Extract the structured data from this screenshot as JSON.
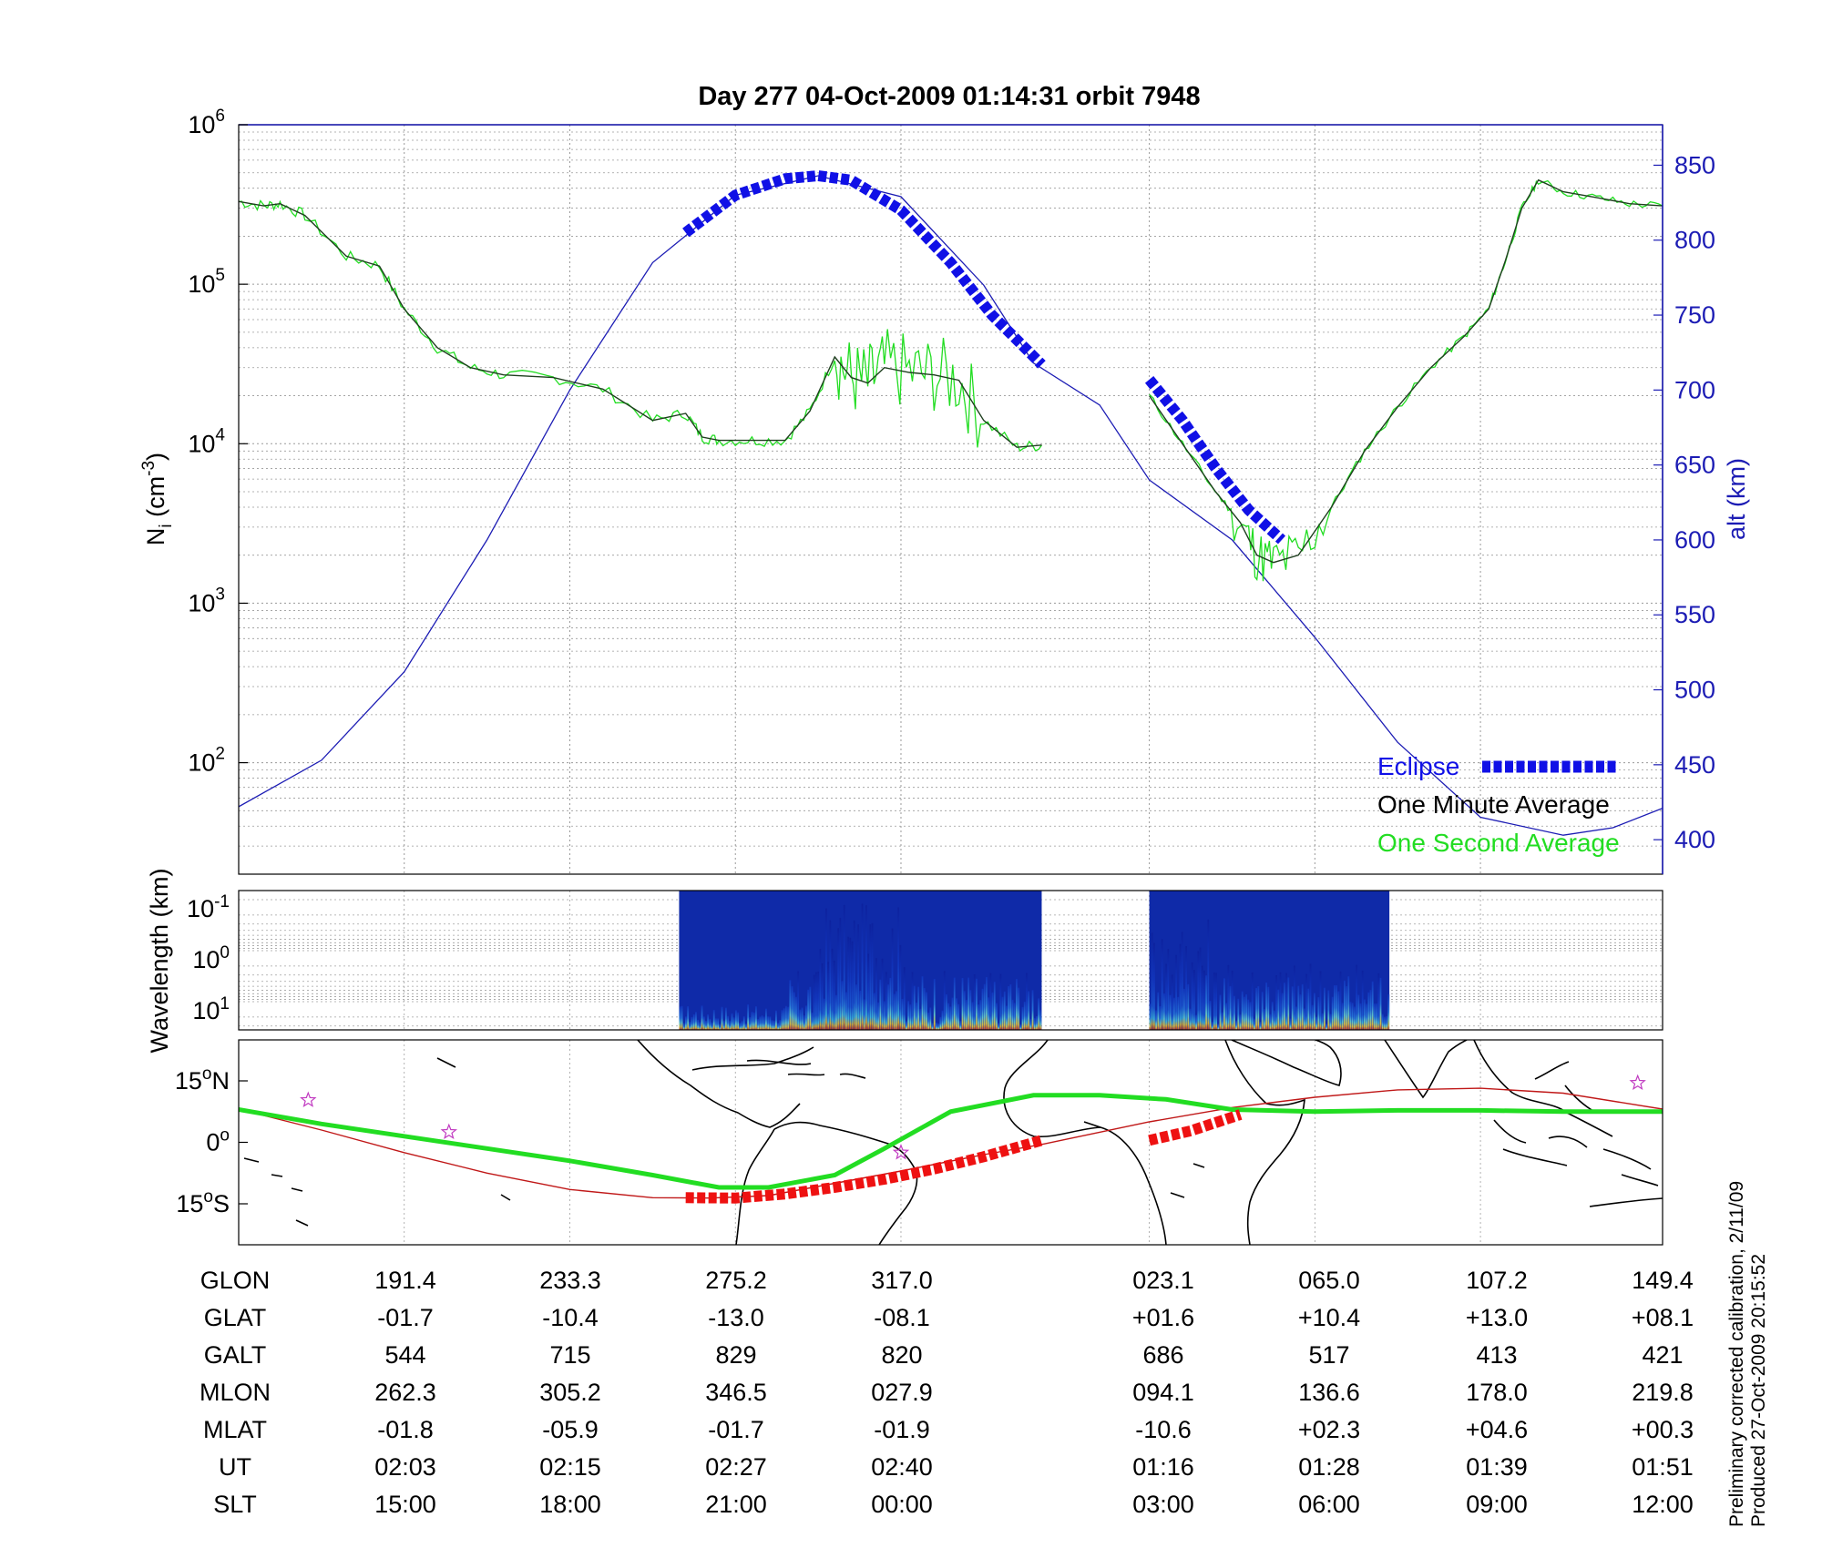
{
  "title": "Day 277  04-Oct-2009 01:14:31   orbit 7948",
  "colors": {
    "altitude": "#1c1cb4",
    "one_minute": "#1f3f1f",
    "one_second": "#22dd22",
    "eclipse": "#1010e6",
    "ground_track": "#c01818",
    "magnetic_track": "#22dd22",
    "eclipse_map": "#ee1111",
    "star": "#c13bc1"
  },
  "chart_data": [
    {
      "type": "line",
      "name": "density_altitude",
      "ylabel_left": "N",
      "ylabel_left_sub": "i",
      "ylabel_left_unit": "(cm",
      "ylabel_left_sup": "-3",
      "ylabel_left_close": ")",
      "ylabel_right": "alt (km)",
      "yscale_left": "log",
      "ylim_left": [
        20,
        1000000
      ],
      "ylim_right": [
        377,
        877
      ],
      "xlim": [
        0,
        8.6
      ],
      "yticks_left": [
        {
          "value": 100,
          "base": "10",
          "exp": "2"
        },
        {
          "value": 1000,
          "base": "10",
          "exp": "3"
        },
        {
          "value": 10000,
          "base": "10",
          "exp": "4"
        },
        {
          "value": 100000,
          "base": "10",
          "exp": "5"
        },
        {
          "value": 1000000,
          "base": "10",
          "exp": "6"
        }
      ],
      "yticks_right": [
        "400",
        "450",
        "500",
        "550",
        "600",
        "650",
        "700",
        "750",
        "800",
        "850"
      ],
      "grid": true,
      "legend_position": "bottom-right",
      "legend": [
        {
          "label": "Eclipse",
          "color": "#1010e6"
        },
        {
          "label": "One Minute Average",
          "color": "#000000"
        },
        {
          "label": "One Second Average",
          "color": "#22dd22"
        }
      ],
      "altitude_series": {
        "x": [
          0,
          0.5,
          1,
          1.5,
          2,
          2.5,
          3,
          3.5,
          4,
          4.5,
          4.8,
          5.2,
          5.5,
          6.0,
          6.5,
          7.0,
          7.5,
          8.0,
          8.3,
          8.6
        ],
        "y": [
          422,
          453,
          512,
          600,
          700,
          785,
          830,
          843,
          829,
          770,
          718,
          690,
          640,
          600,
          535,
          465,
          415,
          403,
          408,
          421
        ]
      },
      "density_series": {
        "x": [
          0,
          0.15,
          0.25,
          0.4,
          0.65,
          0.85,
          1.0,
          1.2,
          1.4,
          1.6,
          1.9,
          2.2,
          2.5,
          2.7,
          2.8,
          2.9,
          3.1,
          3.3,
          3.45,
          3.6,
          3.7,
          3.8,
          3.9,
          4.05,
          4.2,
          4.35,
          4.5,
          4.7,
          4.85
        ],
        "y": [
          330000,
          310000,
          320000,
          270000,
          150000,
          130000,
          70000,
          40000,
          30000,
          27000,
          26000,
          22000,
          14000,
          15500,
          11000,
          10500,
          10500,
          10500,
          16000,
          35000,
          26000,
          24000,
          30000,
          28000,
          27000,
          25000,
          14000,
          9500,
          9800
        ]
      },
      "density_series_2": {
        "x": [
          5.5,
          5.7,
          5.9,
          6.05,
          6.15,
          6.25,
          6.4,
          6.6,
          6.8,
          7.0,
          7.2,
          7.4,
          7.55,
          7.65,
          7.75,
          7.85,
          8.0,
          8.2,
          8.4,
          8.6
        ],
        "y": [
          20000,
          10000,
          5000,
          3200,
          2000,
          1800,
          2000,
          4000,
          9000,
          17000,
          30000,
          47000,
          70000,
          140000,
          300000,
          450000,
          380000,
          350000,
          320000,
          310000
        ]
      },
      "eclipse_segments": [
        {
          "x": [
            2.7,
            3.0,
            3.3,
            3.5,
            3.7,
            4.0,
            4.3,
            4.55,
            4.85
          ],
          "y": [
            805,
            830,
            841,
            843,
            840,
            820,
            785,
            750,
            717
          ]
        },
        {
          "x": [
            5.5,
            5.7,
            5.9,
            6.1,
            6.3
          ],
          "y": [
            707,
            680,
            648,
            620,
            600
          ]
        }
      ]
    },
    {
      "type": "heatmap",
      "name": "wavelength_spectrogram",
      "ylabel": "Wavelength (km)",
      "yticks": [
        {
          "base": "10",
          "exp": "-1"
        },
        {
          "base": "10",
          "exp": "0"
        },
        {
          "base": "10",
          "exp": "1"
        }
      ],
      "data_segments": [
        [
          2.66,
          4.85
        ],
        [
          5.5,
          6.95
        ]
      ]
    },
    {
      "type": "line",
      "name": "orbit_map",
      "ylim": [
        -25,
        25
      ],
      "yticks": [
        {
          "value": 15,
          "label": "15",
          "suffix": "N"
        },
        {
          "value": 0,
          "label": "0",
          "suffix": ""
        },
        {
          "value": -15,
          "label": "15",
          "suffix": "S"
        }
      ],
      "geographic_track": {
        "x": [
          0,
          0.5,
          1.0,
          1.5,
          2.0,
          2.5,
          2.85,
          3.2,
          3.6,
          4.0,
          4.5,
          4.85,
          5.5,
          6.0,
          6.5,
          7.0,
          7.5,
          8.0,
          8.6
        ],
        "y": [
          8.1,
          3,
          -2.5,
          -7.5,
          -11.5,
          -13.5,
          -13.6,
          -13,
          -10,
          -7,
          -3,
          -0.5,
          5,
          8.5,
          11,
          12.8,
          13.2,
          12,
          8.1
        ]
      },
      "magnetic_track": {
        "x": [
          0,
          0.5,
          1.0,
          1.5,
          2.0,
          2.5,
          2.9,
          3.2,
          3.6,
          3.9,
          4.3,
          4.8,
          5.2,
          5.6,
          6.0,
          6.5,
          7.0,
          7.5,
          8.0,
          8.6
        ],
        "y": [
          8,
          4.5,
          1.5,
          -1.5,
          -4.5,
          -8,
          -11,
          -11,
          -8,
          -1.5,
          7.5,
          11.5,
          11.5,
          10.5,
          8,
          7.5,
          7.8,
          7.8,
          7.5,
          7.5
        ]
      },
      "eclipse_segments": [
        {
          "x": [
            2.7,
            3.0,
            3.3,
            3.6,
            3.9,
            4.2,
            4.5,
            4.85
          ],
          "y": [
            -13.5,
            -13.6,
            -12.6,
            -11,
            -9,
            -6.5,
            -3.5,
            0.5
          ]
        },
        {
          "x": [
            5.5,
            5.75,
            6.05
          ],
          "y": [
            0.5,
            2.8,
            6.8
          ]
        }
      ],
      "stars": [
        {
          "x": 0.42,
          "y": 10.3
        },
        {
          "x": 1.27,
          "y": 2.5
        },
        {
          "x": 4.0,
          "y": -2.5
        },
        {
          "x": 8.45,
          "y": 14.5
        }
      ]
    }
  ],
  "table": {
    "rows": [
      {
        "label": "GLON",
        "values": [
          "191.4",
          "233.3",
          "275.2",
          "317.0",
          "023.1",
          "065.0",
          "107.2",
          "149.4"
        ]
      },
      {
        "label": "GLAT",
        "values": [
          "-01.7",
          "-10.4",
          "-13.0",
          "-08.1",
          "+01.6",
          "+10.4",
          "+13.0",
          "+08.1"
        ]
      },
      {
        "label": "GALT",
        "values": [
          "544",
          "715",
          "829",
          "820",
          "686",
          "517",
          "413",
          "421"
        ]
      },
      {
        "label": "MLON",
        "values": [
          "262.3",
          "305.2",
          "346.5",
          "027.9",
          "094.1",
          "136.6",
          "178.0",
          "219.8"
        ]
      },
      {
        "label": "MLAT",
        "values": [
          "-01.8",
          "-05.9",
          "-01.7",
          "-01.9",
          "-10.6",
          "+02.3",
          "+04.6",
          "+00.3"
        ]
      },
      {
        "label": "UT",
        "values": [
          "02:03",
          "02:15",
          "02:27",
          "02:40",
          "01:16",
          "01:28",
          "01:39",
          "01:51"
        ]
      },
      {
        "label": "SLT",
        "values": [
          "15:00",
          "18:00",
          "21:00",
          "00:00",
          "03:00",
          "06:00",
          "09:00",
          "12:00"
        ]
      }
    ]
  },
  "footnote": {
    "line1": "Preliminary corrected calibration, 2/11/09",
    "line2": "Produced 27-Oct-2009 20:15:52"
  }
}
